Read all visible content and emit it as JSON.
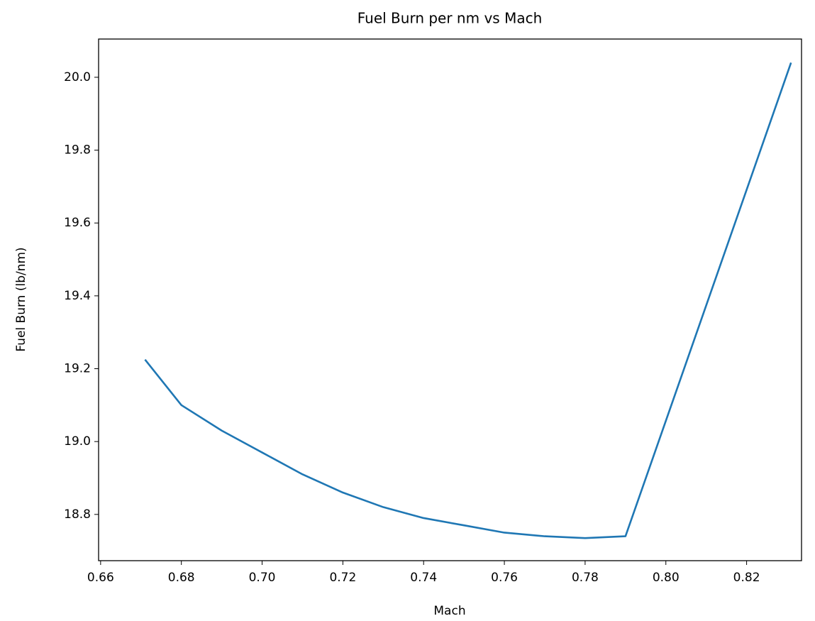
{
  "chart_data": {
    "type": "line",
    "title": "Fuel Burn per nm vs Mach",
    "xlabel": "Mach",
    "ylabel": "Fuel Burn (lb/nm)",
    "x": [
      0.671,
      0.68,
      0.69,
      0.7,
      0.71,
      0.72,
      0.73,
      0.74,
      0.75,
      0.76,
      0.77,
      0.78,
      0.79,
      0.81,
      0.831
    ],
    "series": [
      {
        "name": "Fuel Burn",
        "color": "#1f77b4",
        "values": [
          19.225,
          19.1,
          19.03,
          18.97,
          18.91,
          18.86,
          18.82,
          18.79,
          18.77,
          18.75,
          18.74,
          18.735,
          18.74,
          19.374,
          20.04
        ]
      }
    ],
    "xlim": [
      0.6595,
      0.8336
    ],
    "ylim": [
      18.673,
      20.105
    ],
    "xticks": [
      0.66,
      0.68,
      {
        "value": 0.7,
        "label": "0.70"
      },
      0.72,
      0.74,
      0.76,
      0.78,
      {
        "value": 0.8,
        "label": "0.80"
      },
      0.82
    ],
    "yticks": [
      18.8,
      {
        "value": 19.0,
        "label": "19.0"
      },
      19.2,
      19.4,
      19.6,
      19.8,
      {
        "value": 20.0,
        "label": "20.0"
      }
    ],
    "grid": false
  }
}
